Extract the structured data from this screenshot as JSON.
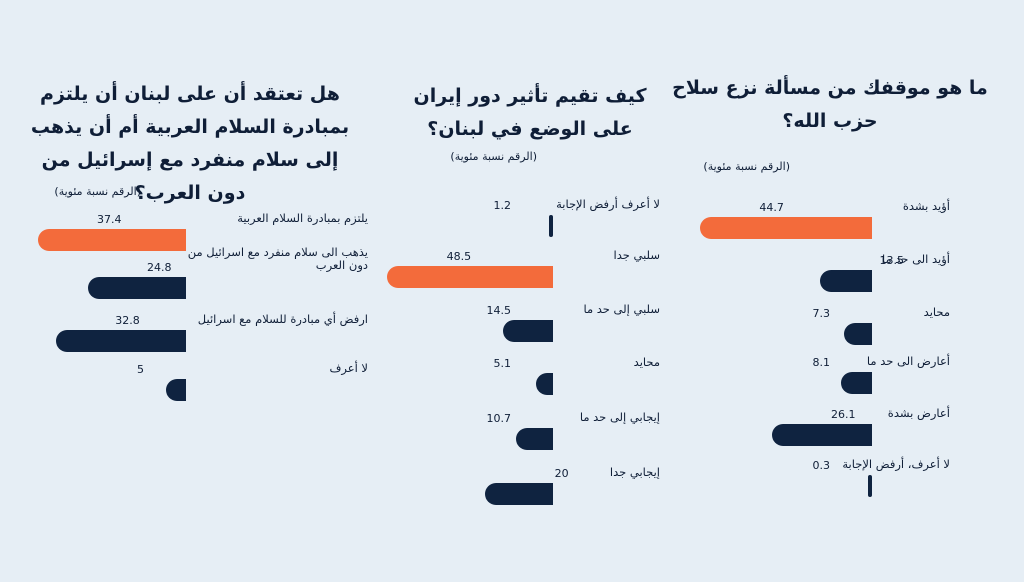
{
  "colors": {
    "highlight": "#f36b3b",
    "default": "#0f2340"
  },
  "chart_data": [
    {
      "type": "bar",
      "orientation": "horizontal",
      "title": "ما هو موقفك من مسألة نزع سلاح حزب الله؟",
      "unit_label": "(الرقم نسبة مئوية)",
      "categories": [
        "أؤيد بشدة",
        "أؤيد الى حد ما",
        "محايد",
        "أعارض الى حد ما",
        "أعارض بشدة",
        "لا أعرف، أرفض الإجابة"
      ],
      "values": [
        44.7,
        13.5,
        7.3,
        8.1,
        26.1,
        0.3
      ],
      "highlight_index": 0
    },
    {
      "type": "bar",
      "orientation": "horizontal",
      "title": "كيف تقيم تأثير دور إيران على الوضع في لبنان؟",
      "unit_label": "(الرقم نسبة مئوية)",
      "categories": [
        "لا أعرف أرفض الإجابة",
        "سلبي جدا",
        "سلبي إلى حد ما",
        "محايد",
        "إيجابي إلى حد ما",
        "إيجابي جدا"
      ],
      "values": [
        1.2,
        48.5,
        14.5,
        5.1,
        10.7,
        20
      ],
      "highlight_index": 1
    },
    {
      "type": "bar",
      "orientation": "horizontal",
      "title": "هل تعتقد أن على لبنان أن يلتزم بمبادرة السلام العربية أم أن يذهب إلى سلام منفرد مع إسرائيل من دون العرب؟",
      "unit_label": "(الرقم نسبة مئوية)",
      "categories": [
        "يلتزم بمبادرة السلام العربية",
        "يذهب الى سلام منفرد مع اسرائيل من دون العرب",
        "ارفض أي مبادرة للسلام مع اسرائيل",
        "لا أعرف"
      ],
      "values": [
        37.4,
        24.8,
        32.8,
        5
      ],
      "highlight_index": 0
    }
  ]
}
